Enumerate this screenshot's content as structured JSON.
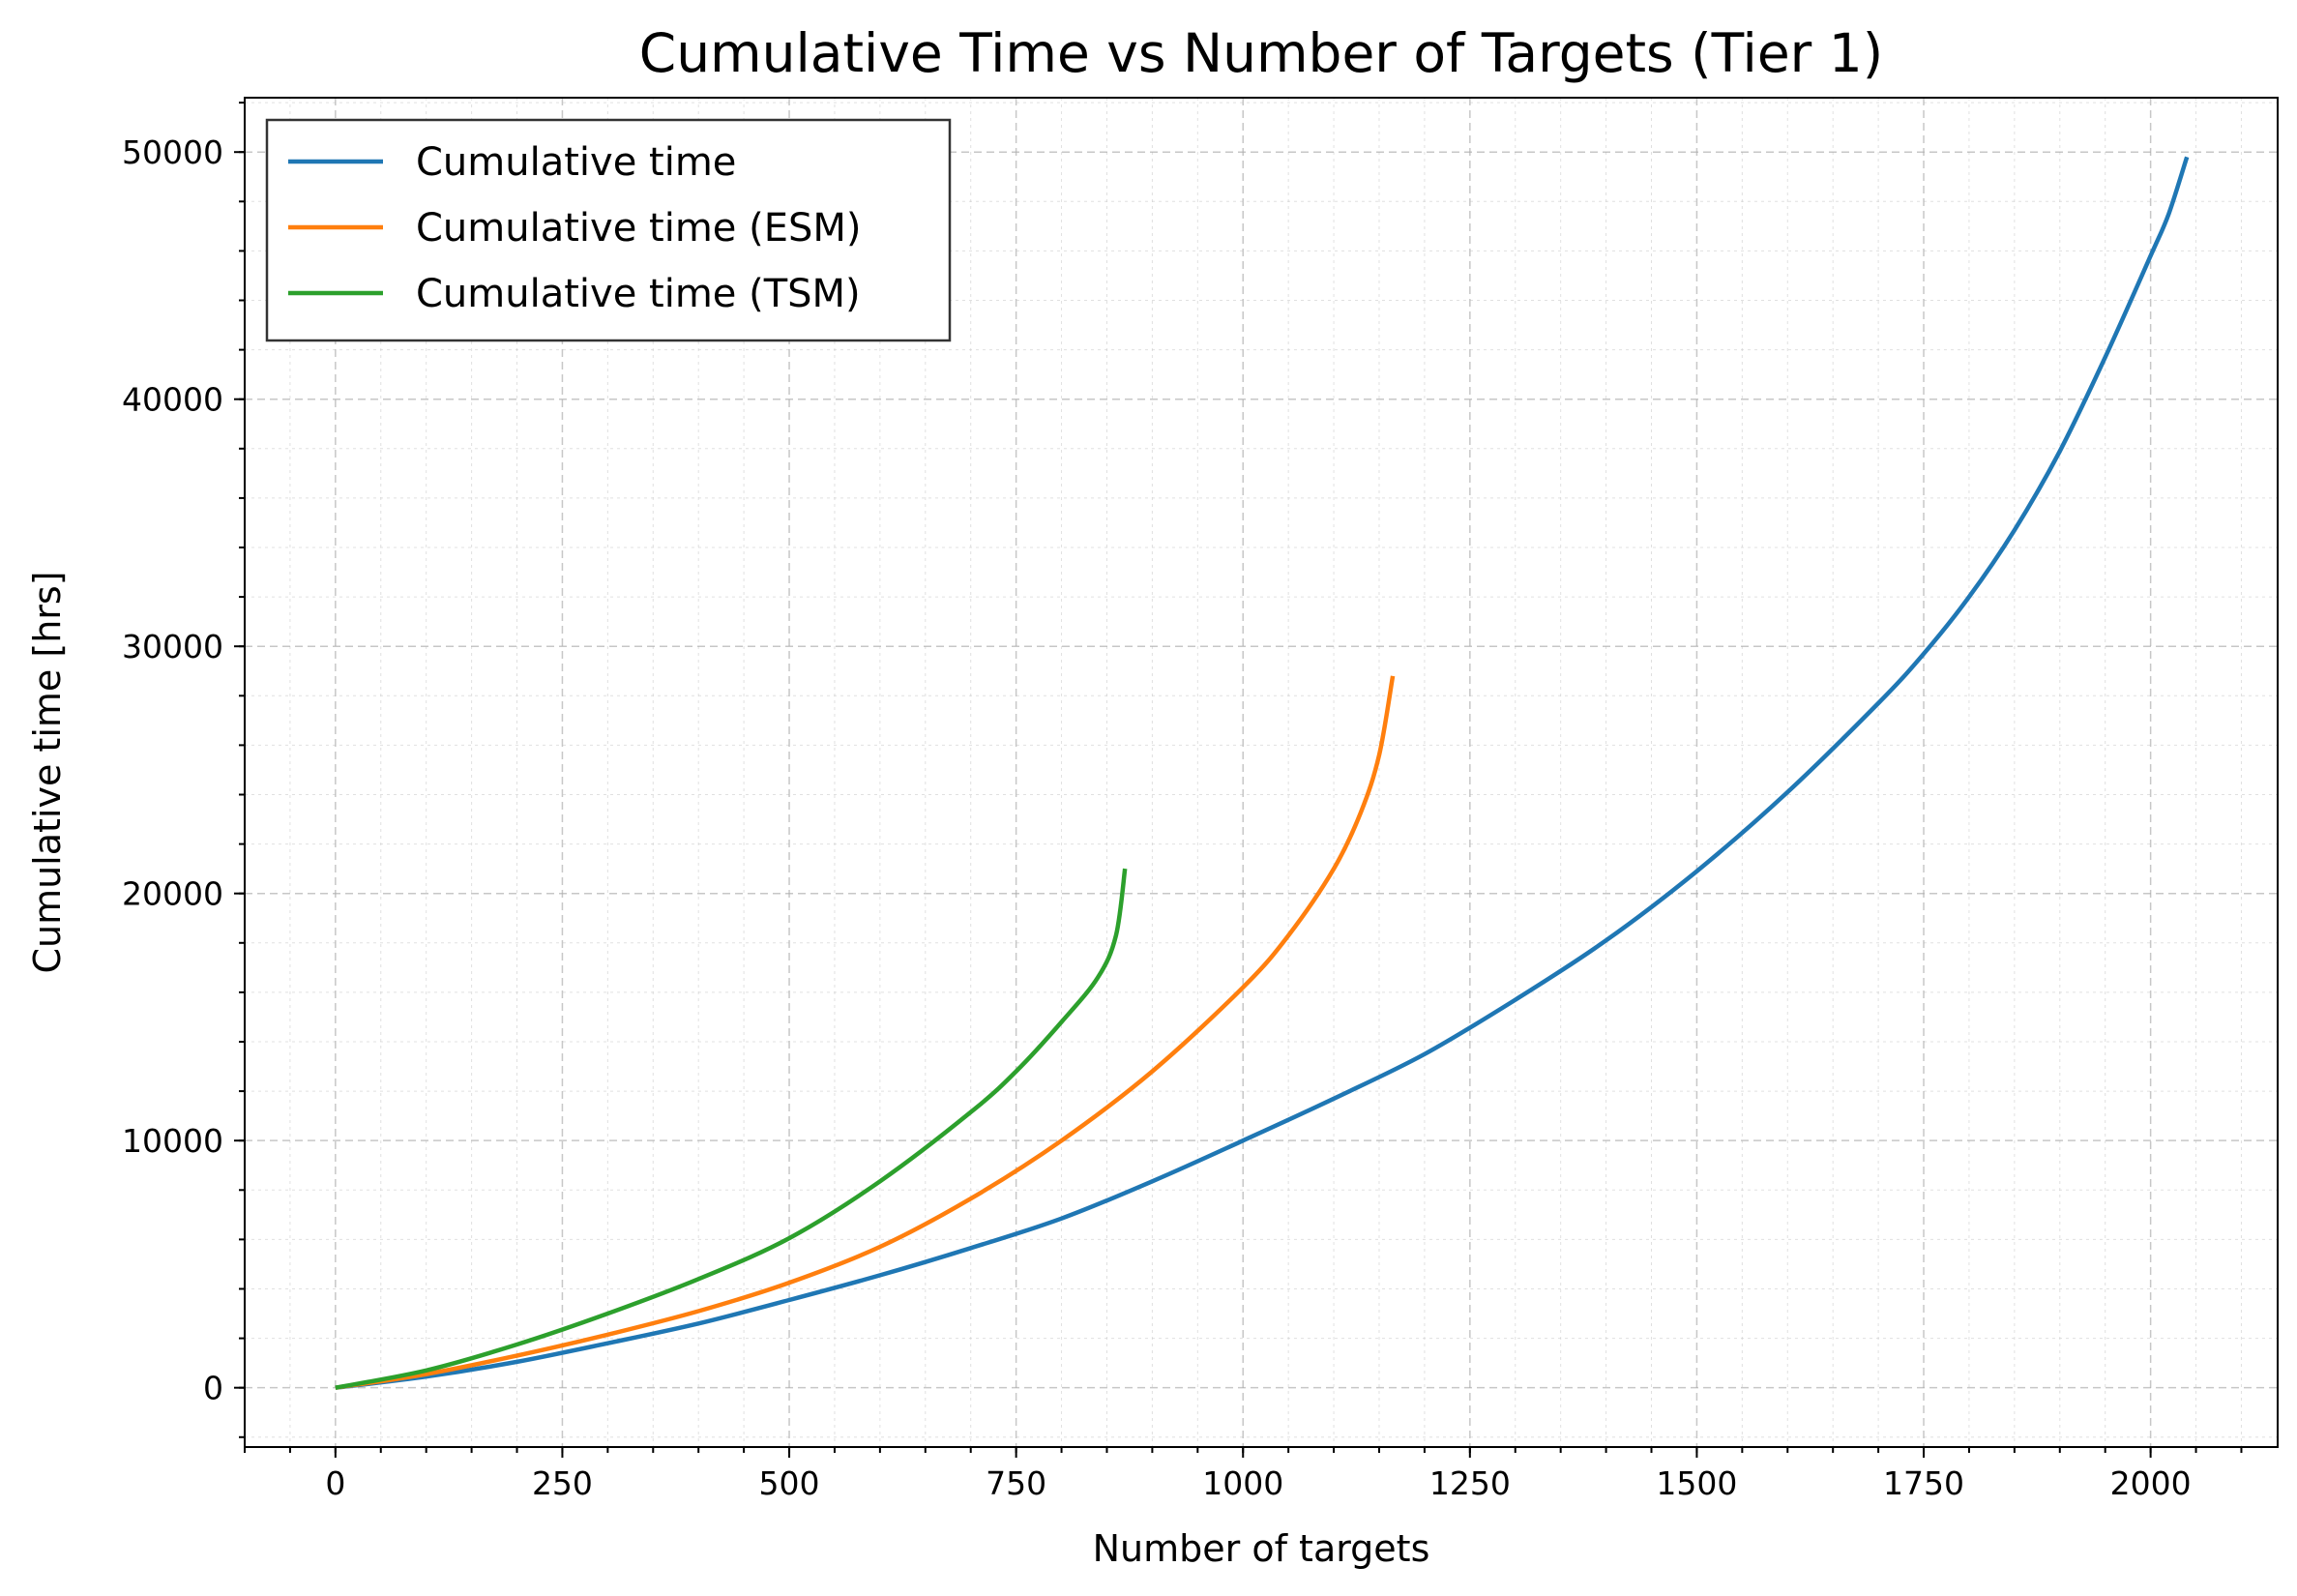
{
  "chart_data": {
    "type": "line",
    "title": "Cumulative Time vs Number of Targets (Tier 1)",
    "xlabel": "Number of targets",
    "ylabel": "Cumulative time [hrs]",
    "xlim": [
      -100,
      2140
    ],
    "ylim": [
      -2400,
      52200
    ],
    "xticks": [
      0,
      250,
      500,
      750,
      1000,
      1250,
      1500,
      1750,
      2000
    ],
    "yticks": [
      0,
      10000,
      20000,
      30000,
      40000,
      50000
    ],
    "xtick_labels": [
      "0",
      "250",
      "500",
      "750",
      "1000",
      "1250",
      "1500",
      "1750",
      "2000"
    ],
    "ytick_labels": [
      "0",
      "10000",
      "20000",
      "30000",
      "40000",
      "50000"
    ],
    "grid": true,
    "legend_position": "top-left",
    "series": [
      {
        "name": "Cumulative time",
        "color": "#1f77b4",
        "x": [
          0,
          100,
          200,
          300,
          400,
          500,
          600,
          700,
          800,
          900,
          1000,
          1100,
          1200,
          1300,
          1400,
          1500,
          1600,
          1700,
          1750,
          1800,
          1850,
          1900,
          1950,
          2000,
          2020,
          2040
        ],
        "y": [
          0,
          450,
          1050,
          1800,
          2600,
          3550,
          4550,
          5650,
          6850,
          8350,
          10000,
          11700,
          13500,
          15700,
          18100,
          20900,
          24100,
          27700,
          29700,
          32000,
          34700,
          37900,
          41700,
          45800,
          47500,
          49800
        ]
      },
      {
        "name": "Cumulative time (ESM)",
        "color": "#ff7f0e",
        "x": [
          0,
          100,
          200,
          300,
          400,
          500,
          600,
          700,
          800,
          900,
          1000,
          1050,
          1100,
          1130,
          1150,
          1165
        ],
        "y": [
          0,
          550,
          1300,
          2150,
          3100,
          4250,
          5700,
          7650,
          10000,
          12800,
          16200,
          18300,
          21000,
          23300,
          25600,
          28800
        ]
      },
      {
        "name": "Cumulative time (TSM)",
        "color": "#2ca02c",
        "x": [
          0,
          100,
          200,
          300,
          400,
          500,
          600,
          700,
          750,
          800,
          840,
          860,
          870
        ],
        "y": [
          0,
          700,
          1750,
          3000,
          4400,
          6050,
          8350,
          11150,
          12800,
          14800,
          16600,
          18300,
          21000
        ]
      }
    ]
  }
}
